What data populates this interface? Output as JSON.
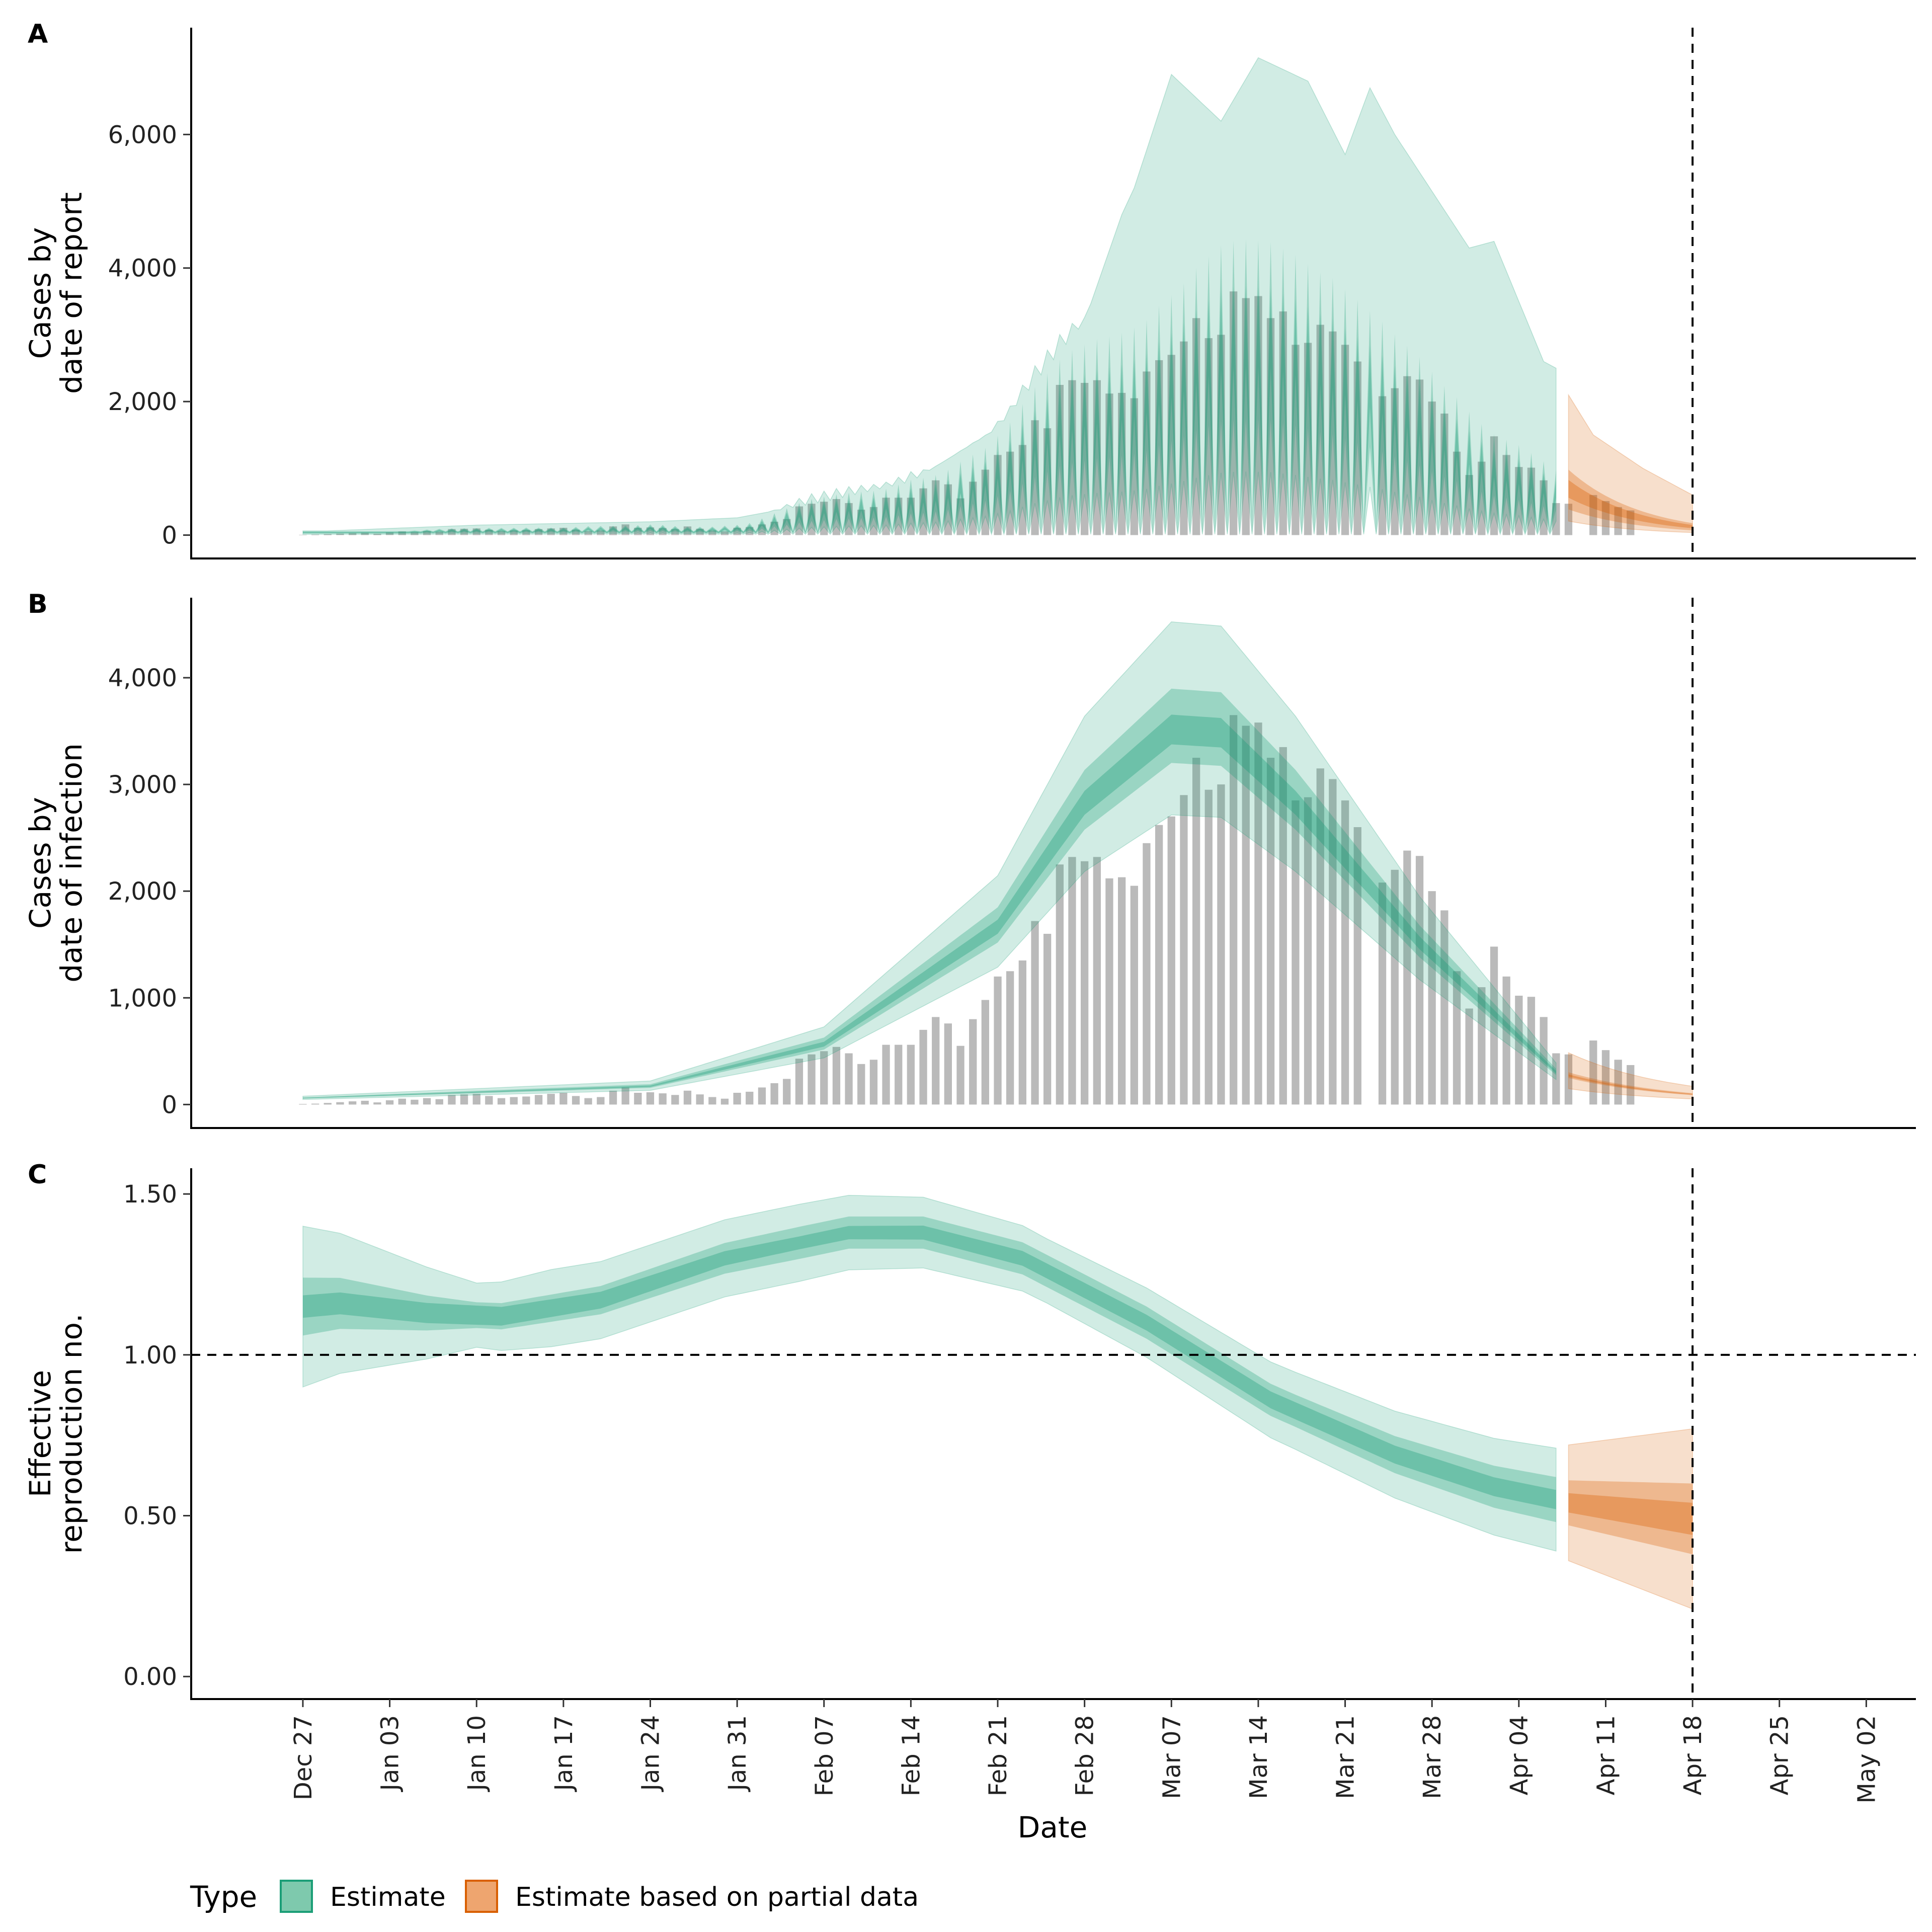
{
  "chart_data": {
    "type": "area",
    "panels": [
      {
        "letter": "A",
        "ylabel_lines": [
          "Cases by",
          "date of report"
        ],
        "ylim": [
          -350,
          7600
        ],
        "yticks": [
          0,
          2000,
          4000,
          6000
        ],
        "ytick_labels": [
          "0",
          "2,000",
          "4,000",
          "6,000"
        ],
        "observed_bars": true,
        "bands": "report"
      },
      {
        "letter": "B",
        "ylabel_lines": [
          "Cases by",
          "date of infection"
        ],
        "ylim": [
          -220,
          4750
        ],
        "yticks": [
          0,
          1000,
          2000,
          3000,
          4000
        ],
        "ytick_labels": [
          "0",
          "1,000",
          "2,000",
          "3,000",
          "4,000"
        ],
        "observed_bars": true,
        "bands": "infection"
      },
      {
        "letter": "C",
        "ylabel_lines": [
          "Effective",
          "reproduction no."
        ],
        "ylim": [
          -0.07,
          1.58
        ],
        "yticks": [
          0,
          0.5,
          1.0,
          1.5
        ],
        "ytick_labels": [
          "0.00",
          "0.50",
          "1.00",
          "1.50"
        ],
        "hline": 1.0,
        "observed_bars": false,
        "bands": "rt"
      }
    ],
    "x_axis": {
      "label": "Date",
      "range_days": [
        -9,
        130
      ],
      "ticks": [
        0,
        7,
        14,
        21,
        28,
        35,
        42,
        49,
        56,
        63,
        70,
        77,
        84,
        91,
        98,
        105,
        112,
        119,
        126
      ],
      "tick_labels": [
        "Dec 27",
        "Jan 03",
        "Jan 10",
        "Jan 17",
        "Jan 24",
        "Jan 31",
        "Feb 07",
        "Feb 14",
        "Feb 21",
        "Feb 28",
        "Mar 07",
        "Mar 14",
        "Mar 21",
        "Mar 28",
        "Apr 04",
        "Apr 11",
        "Apr 18",
        "Apr 25",
        "May 02"
      ],
      "vline_day": 112
    },
    "estimate_days": [
      0,
      101
    ],
    "partial_days": [
      102,
      112
    ],
    "observed_cases": [
      5,
      8,
      15,
      22,
      30,
      35,
      20,
      40,
      55,
      45,
      60,
      50,
      90,
      95,
      100,
      80,
      60,
      70,
      75,
      90,
      100,
      110,
      80,
      60,
      70,
      130,
      160,
      110,
      115,
      105,
      90,
      130,
      95,
      70,
      55,
      110,
      120,
      160,
      200,
      240,
      430,
      470,
      500,
      540,
      480,
      380,
      420,
      560,
      560,
      560,
      700,
      820,
      760,
      550,
      800,
      980,
      1200,
      1250,
      1350,
      1720,
      1600,
      2250,
      2320,
      2280,
      2320,
      2120,
      2130,
      2050,
      2450,
      2620,
      2700,
      2900,
      3250,
      2950,
      3000,
      3650,
      3550,
      3580,
      3250,
      3350,
      2850,
      2880,
      3150,
      3050,
      2850,
      2600,
      0,
      2080,
      2200,
      2380,
      2330,
      2000,
      1820,
      1250,
      900,
      1100,
      1480,
      1200,
      1020,
      1010,
      820,
      480,
      470,
      0,
      600,
      510,
      420,
      370
    ],
    "legend": {
      "title": "Type",
      "entries": [
        {
          "label": "Estimate",
          "fill": "#7ec9ad",
          "stroke": "#1b9e77"
        },
        {
          "label": "Estimate based on partial data",
          "fill": "#eea56f",
          "stroke": "#d95f02"
        }
      ]
    },
    "colors": {
      "estimate": "#1b9e77",
      "partial": "#d95f02",
      "bars": "#bababa"
    }
  }
}
